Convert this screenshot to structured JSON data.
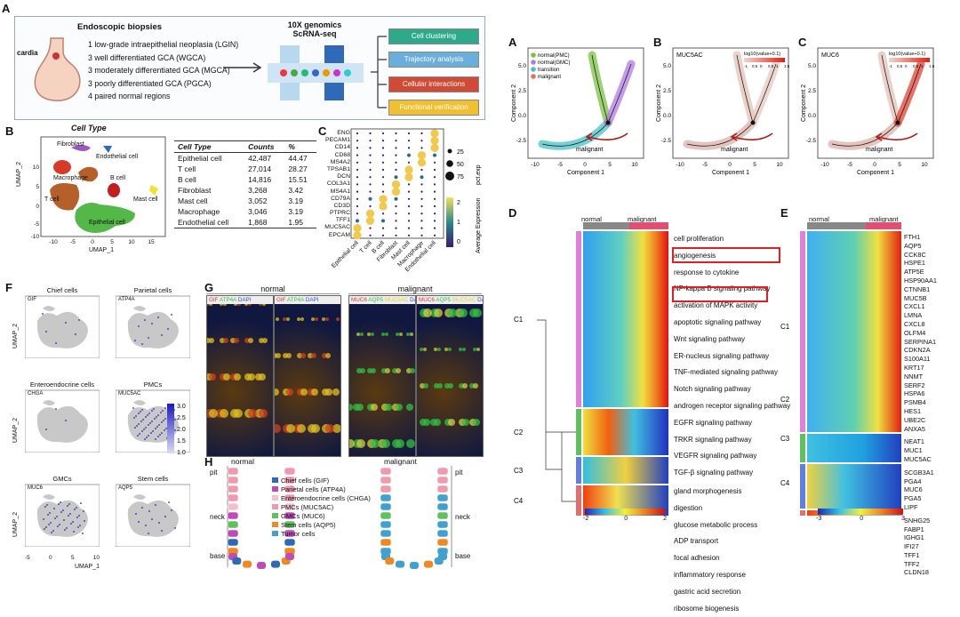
{
  "panelA": {
    "label": "A",
    "biopsy_title": "Endoscopic biopsies",
    "cardia": "cardia",
    "items": [
      "1 low-grade intraepithelial neoplasia (LGIN)",
      "3 well differentiated GCA (WGCA)",
      "3 moderately differentiated GCA (MGCA)",
      "3 poorly differentiated GCA (PGCA)",
      "4 paired normal regions"
    ],
    "seq_title1": "10X genomics",
    "seq_title2": "ScRNA-seq",
    "steps": [
      {
        "label": "Cell clustering",
        "color": "#2eaa8a"
      },
      {
        "label": "Trajectory analysis",
        "color": "#6aaedc"
      },
      {
        "label": "Cellular interactions",
        "color": "#d04a35"
      },
      {
        "label": "Functional verification",
        "color": "#f0c030"
      }
    ]
  },
  "panelB": {
    "label": "B",
    "title": "Cell Type",
    "xlabel": "UMAP_1",
    "ylabel": "UMAP_2",
    "xticks": [
      "-10",
      "-5",
      "0",
      "5",
      "10",
      "15"
    ],
    "yticks": [
      "10",
      "5",
      "0",
      "-5",
      "-10"
    ],
    "clusters": [
      {
        "name": "Fibroblast",
        "color": "#9b59c0"
      },
      {
        "name": "Endothelial cell",
        "color": "#2f6ab8"
      },
      {
        "name": "Macrophage",
        "color": "#d83a2a"
      },
      {
        "name": "B cell",
        "color": "#c41e1e"
      },
      {
        "name": "Mast cell",
        "color": "#f4e030"
      },
      {
        "name": "T cell",
        "color": "#b5602a"
      },
      {
        "name": "Epithelial cell",
        "color": "#54b848"
      }
    ],
    "table": {
      "headers": [
        "Cell Type",
        "Counts",
        "%"
      ],
      "rows": [
        [
          "Epithelial cell",
          "42,487",
          "44.47"
        ],
        [
          "T cell",
          "27,014",
          "28.27"
        ],
        [
          "B cell",
          "14,816",
          "15.51"
        ],
        [
          "Fibroblast",
          "3,268",
          "3.42"
        ],
        [
          "Mast cell",
          "3,052",
          "3.19"
        ],
        [
          "Macrophage",
          "3,046",
          "3.19"
        ],
        [
          "Endothelial cell",
          "1,868",
          "1.95"
        ]
      ]
    }
  },
  "panelC": {
    "label": "C",
    "genes": [
      "ENG",
      "PECAM1",
      "CD14",
      "CD68",
      "MS4A2",
      "TPSAB1",
      "DCN",
      "COL3A1",
      "MS4A1",
      "CD79A",
      "CD3D",
      "PTPRC",
      "TFF1",
      "MUC5AC",
      "EPCAM"
    ],
    "celltypes": [
      "Epithelial cell",
      "T cell",
      "B cell",
      "Fibroblast",
      "Mast cell",
      "Macrophage",
      "Endothelial cell"
    ],
    "size_legend_title": "pct.exp",
    "size_legend": [
      "25",
      "50",
      "75"
    ],
    "color_legend_title": "Average Expression",
    "color_legend": [
      "2",
      "1",
      "0"
    ]
  },
  "panelF": {
    "label": "F",
    "ylabel": "UMAP_2",
    "xlabel": "UMAP_1",
    "xticks": [
      "-5",
      "0",
      "5",
      "10"
    ],
    "maps": [
      {
        "title": "Chief cells",
        "gene": "GIF"
      },
      {
        "title": "Parietal cells",
        "gene": "ATP4A"
      },
      {
        "title": "Enteroendocrine cells",
        "gene": "CHGA"
      },
      {
        "title": "PMCs",
        "gene": "MUC5AC"
      },
      {
        "title": "GMCs",
        "gene": "MUC6"
      },
      {
        "title": "Stem cells",
        "gene": "AQP5"
      }
    ],
    "scale": [
      "3.0",
      "2.5",
      "2.0",
      "1.5",
      "1.0"
    ]
  },
  "panelG": {
    "label": "G",
    "normal": "normal",
    "malignant": "malignant",
    "stain1": {
      "parts": [
        "GIF",
        "ATP4A",
        "DAPI"
      ],
      "colors": [
        "#e03030",
        "#30c040",
        "#3050e0"
      ]
    },
    "stain2": {
      "parts": [
        "MUC6",
        "AQP5",
        "MUC5AC",
        "DAPI"
      ],
      "colors": [
        "#e03030",
        "#30c040",
        "#e0d030",
        "#3050e0"
      ]
    }
  },
  "panelH": {
    "label": "H",
    "normal": "normal",
    "malignant": "malignant",
    "pit": "pit",
    "neck": "neck",
    "base": "base",
    "legend": [
      {
        "label": "Chief cells (GIF)",
        "color": "#2f6ab8"
      },
      {
        "label": "Parietal cells (ATP4A)",
        "color": "#c04ab8"
      },
      {
        "label": "Enteroendocrine cells (CHGA)",
        "color": "#f4c0d0"
      },
      {
        "label": "PMCs (MUC5AC)",
        "color": "#f09ab0"
      },
      {
        "label": "GMCs (MUC6)",
        "color": "#60c060"
      },
      {
        "label": "Stem cells (AQP5)",
        "color": "#f08a20"
      },
      {
        "label": "Tumor cells",
        "color": "#40a0d0"
      }
    ]
  },
  "trajA": {
    "label": "A",
    "xlabel": "Component 1",
    "ylabel": "Component 2",
    "legend": [
      {
        "label": "normal(PMC)",
        "color": "#7ac142"
      },
      {
        "label": "normal(GMC)",
        "color": "#b07ae0"
      },
      {
        "label": "transition",
        "color": "#4ac0c8"
      },
      {
        "label": "malignant",
        "color": "#e07060"
      }
    ],
    "arrow_label": "malignant",
    "xticks": [
      "-10",
      "-5",
      "0",
      "5",
      "10"
    ],
    "yticks": [
      "5.0",
      "2.5",
      "0.0",
      "-2.5"
    ]
  },
  "trajB": {
    "label": "B",
    "gene": "MUC5AC",
    "scale_title": "log10(value+0.1)",
    "scale_ticks": [
      "-1",
      "0.5",
      "0",
      "0.5",
      "1",
      "1.5"
    ],
    "arrow_label": "malignant",
    "xlabel": "Component 1",
    "ylabel": "Component 2",
    "xticks": [
      "-10",
      "-5",
      "0",
      "5",
      "10"
    ],
    "yticks": [
      "5.0",
      "2.5",
      "0.0",
      "-2.5"
    ]
  },
  "trajC": {
    "label": "C",
    "gene": "MUC6",
    "scale_title": "log10(value+0.1)",
    "scale_ticks": [
      "-1",
      "0.5",
      "0",
      "0.5",
      "1",
      "1.5"
    ],
    "arrow_label": "malignant",
    "xlabel": "Component 1",
    "ylabel": "Component 2",
    "xticks": [
      "-10",
      "-5",
      "0",
      "5",
      "10"
    ],
    "yticks": [
      "5.0",
      "2.5",
      "0.0",
      "-2.5"
    ]
  },
  "panelD": {
    "label": "D",
    "normal": "normal",
    "malignant": "malignant",
    "terms": [
      "cell proliferation",
      "angiogenesis",
      "response to cytokine",
      "NF-kappa B signaling pathway",
      "activation of MAPK activity",
      "apoptotic signaling pathway",
      "Wnt signaling pathway",
      "ER-nucleus signaling pathway",
      "TNF-mediated signaling pathway",
      "Notch signaling pathway",
      "androgen receptor signaling pathway",
      "EGFR signaling pathway",
      "TRKR signaling pathway",
      "VEGFR signaling pathway",
      "TGF-β signaling pathway",
      "gland morphogenesis",
      "digestion",
      "glucose metabolic process",
      "ADP transport",
      "focal adhesion",
      "inflammatory response",
      "gastric acid secretion",
      "ribosome biogenesis"
    ],
    "clusters": [
      "C1",
      "C2",
      "C3",
      "C4"
    ],
    "scale": [
      "-2",
      "0",
      "2"
    ]
  },
  "panelE": {
    "label": "E",
    "normal": "normal",
    "malignant": "malignant",
    "c1": [
      "FTH1",
      "AQP5",
      "CCK8C",
      "HSPE1",
      "ATP5E",
      "HSP90AA1",
      "CTNNB1",
      "MUC5B",
      "CXCL1",
      "LMNA",
      "CXCL8",
      "OLFM4",
      "SERPINA1",
      "CDKN2A",
      "S100A11",
      "KRT17",
      "NNMT",
      "SERF2",
      "HSPA6",
      "PSMB4",
      "HES1",
      "UBE2C",
      "ANXA5"
    ],
    "c2": [
      "NEAT1",
      "MUC1",
      "MUC5AC"
    ],
    "c3": [
      "SCGB3A1",
      "PGA4",
      "MUC6",
      "PGA5",
      "LIPF"
    ],
    "c4": [
      "SNHG25",
      "FABP1",
      "IGHG1",
      "IFI27",
      "TFF1",
      "TFF2",
      "CLDN18"
    ],
    "clusters": [
      "C1",
      "C2",
      "C3",
      "C4"
    ],
    "scale": [
      "-3",
      "0",
      "3"
    ]
  }
}
